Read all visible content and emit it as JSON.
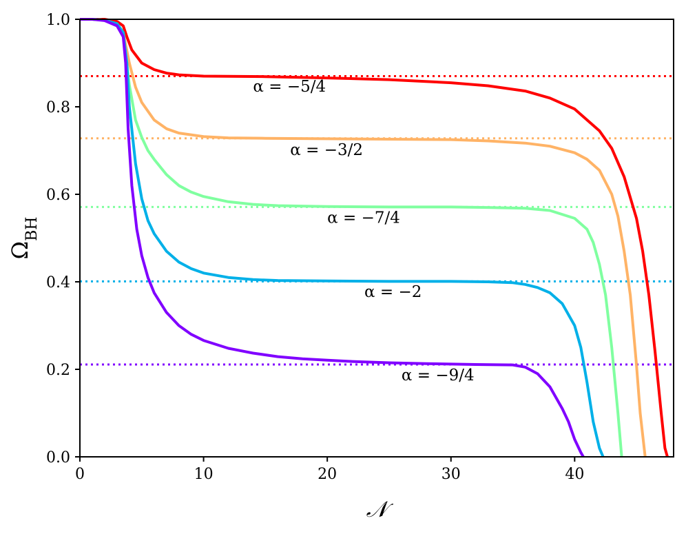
{
  "chart_data": {
    "type": "line",
    "title": "",
    "xlabel": "𝒩",
    "ylabel": "Ω",
    "ylabel_subscript": "BH",
    "xlim": [
      0,
      48
    ],
    "ylim": [
      0,
      1
    ],
    "xticks": [
      "0",
      "10",
      "20",
      "30",
      "40"
    ],
    "yticks": [
      "0.0",
      "0.2",
      "0.4",
      "0.6",
      "0.8",
      "1.0"
    ],
    "grid": false,
    "legend": "none",
    "series": [
      {
        "name": "α = −5/4",
        "color": "#ff0000",
        "plateau": 0.87,
        "x": [
          0,
          1,
          2,
          3,
          3.5,
          3.8,
          4.2,
          5,
          6,
          7,
          8,
          10,
          15,
          20,
          25,
          30,
          33,
          36,
          38,
          40,
          42,
          43,
          44,
          45,
          45.5,
          46,
          46.5,
          47,
          47.3,
          47.5
        ],
        "y": [
          1.0,
          1.0,
          1.0,
          0.995,
          0.985,
          0.96,
          0.93,
          0.9,
          0.885,
          0.877,
          0.873,
          0.87,
          0.869,
          0.866,
          0.862,
          0.855,
          0.848,
          0.836,
          0.82,
          0.795,
          0.745,
          0.705,
          0.64,
          0.545,
          0.47,
          0.37,
          0.24,
          0.1,
          0.02,
          0.0
        ]
      },
      {
        "name": "α = −3/2",
        "color": "#ffb366",
        "plateau": 0.728,
        "x": [
          0,
          1,
          2,
          3,
          3.5,
          4,
          4.5,
          5,
          6,
          7,
          8,
          10,
          12,
          15,
          20,
          25,
          30,
          33,
          36,
          38,
          40,
          41,
          42,
          43,
          43.5,
          44,
          44.5,
          45,
          45.3,
          45.7
        ],
        "y": [
          1.0,
          1.0,
          0.998,
          0.99,
          0.97,
          0.9,
          0.845,
          0.81,
          0.77,
          0.75,
          0.74,
          0.732,
          0.729,
          0.728,
          0.727,
          0.726,
          0.725,
          0.722,
          0.717,
          0.71,
          0.695,
          0.68,
          0.655,
          0.6,
          0.55,
          0.47,
          0.37,
          0.21,
          0.1,
          0.0
        ]
      },
      {
        "name": "α = −7/4",
        "color": "#80ffa0",
        "plateau": 0.571,
        "x": [
          0,
          1,
          2,
          3,
          3.5,
          4,
          4.5,
          5,
          5.5,
          6,
          7,
          8,
          9,
          10,
          12,
          14,
          16,
          20,
          25,
          30,
          33,
          36,
          38,
          40,
          41,
          41.5,
          42,
          42.5,
          43,
          43.5,
          43.8
        ],
        "y": [
          1.0,
          1.0,
          0.998,
          0.99,
          0.97,
          0.85,
          0.77,
          0.73,
          0.7,
          0.68,
          0.645,
          0.62,
          0.605,
          0.595,
          0.583,
          0.577,
          0.574,
          0.572,
          0.571,
          0.571,
          0.57,
          0.568,
          0.563,
          0.545,
          0.52,
          0.49,
          0.44,
          0.37,
          0.25,
          0.1,
          0.0
        ]
      },
      {
        "name": "α = −2",
        "color": "#00b0e8",
        "plateau": 0.401,
        "x": [
          0,
          1,
          2,
          3,
          3.5,
          3.8,
          4,
          4.5,
          5,
          5.5,
          6,
          7,
          8,
          9,
          10,
          12,
          14,
          16,
          20,
          25,
          30,
          33,
          35,
          36,
          37,
          38,
          39,
          40,
          40.5,
          41,
          41.5,
          42,
          42.3
        ],
        "y": [
          1.0,
          1.0,
          0.998,
          0.99,
          0.97,
          0.9,
          0.8,
          0.67,
          0.59,
          0.54,
          0.51,
          0.47,
          0.445,
          0.43,
          0.42,
          0.41,
          0.405,
          0.403,
          0.402,
          0.401,
          0.401,
          0.4,
          0.398,
          0.394,
          0.387,
          0.375,
          0.35,
          0.3,
          0.25,
          0.17,
          0.08,
          0.02,
          0.0
        ]
      },
      {
        "name": "α = −9/4",
        "color": "#8000ff",
        "plateau": 0.211,
        "x": [
          0,
          1,
          2,
          3,
          3.5,
          3.7,
          3.9,
          4.2,
          4.6,
          5,
          5.5,
          6,
          7,
          8,
          9,
          10,
          12,
          14,
          16,
          18,
          20,
          22,
          25,
          28,
          30,
          32,
          35,
          36,
          37,
          38,
          39,
          39.5,
          40,
          40.5,
          40.7
        ],
        "y": [
          1.0,
          1.0,
          0.997,
          0.985,
          0.96,
          0.9,
          0.75,
          0.62,
          0.52,
          0.46,
          0.41,
          0.375,
          0.33,
          0.3,
          0.28,
          0.266,
          0.248,
          0.237,
          0.229,
          0.224,
          0.221,
          0.218,
          0.215,
          0.213,
          0.212,
          0.211,
          0.21,
          0.205,
          0.19,
          0.16,
          0.11,
          0.08,
          0.04,
          0.01,
          0.0
        ]
      }
    ],
    "annotations": [
      {
        "text": "α = −5/4",
        "x": 14,
        "y": 0.835
      },
      {
        "text": "α = −3/2",
        "x": 17,
        "y": 0.69
      },
      {
        "text": "α = −7/4",
        "x": 20,
        "y": 0.535
      },
      {
        "text": "α = −2",
        "x": 23,
        "y": 0.365
      },
      {
        "text": "α = −9/4",
        "x": 26,
        "y": 0.175
      }
    ]
  }
}
